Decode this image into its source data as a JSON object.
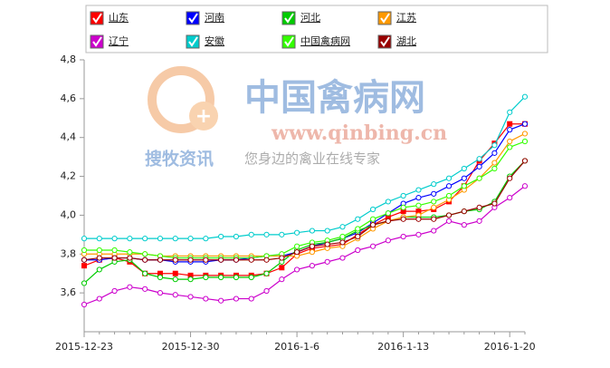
{
  "chart_data": {
    "type": "line",
    "categories": [
      "2015-12-23",
      null,
      null,
      null,
      null,
      null,
      null,
      "2015-12-30",
      null,
      null,
      null,
      null,
      null,
      null,
      "2016-1-6",
      null,
      null,
      null,
      null,
      null,
      null,
      "2016-1-13",
      null,
      null,
      null,
      null,
      null,
      null,
      "2016-1-20",
      null
    ],
    "ylim": [
      3.4,
      4.8
    ],
    "yticks": [
      {
        "value": 3.6,
        "label": "3,6"
      },
      {
        "value": 3.8,
        "label": "3,8"
      },
      {
        "value": 4.0,
        "label": "4,0"
      },
      {
        "value": 4.2,
        "label": "4,2"
      },
      {
        "value": 4.4,
        "label": "4,4"
      },
      {
        "value": 4.6,
        "label": "4,6"
      },
      {
        "value": 4.8,
        "label": "4,8"
      }
    ],
    "grid": false,
    "annotations": [
      "中国禽病网",
      "www.qinbing.cn",
      "搜牧资讯",
      "您身边的禽业在线专家"
    ],
    "series": [
      {
        "name": "山东",
        "color": "#ff0000",
        "marker": "square",
        "values": [
          3.74,
          3.77,
          3.78,
          3.76,
          3.7,
          3.7,
          3.7,
          3.69,
          3.69,
          3.69,
          3.69,
          3.69,
          3.7,
          3.73,
          3.8,
          3.83,
          3.84,
          3.85,
          3.9,
          3.95,
          3.99,
          4.02,
          4.02,
          4.03,
          4.07,
          4.15,
          4.28,
          4.37,
          4.47,
          4.47
        ]
      },
      {
        "name": "河南",
        "color": "#0000ff",
        "marker": "circle",
        "values": [
          3.77,
          3.77,
          3.78,
          3.78,
          3.77,
          3.77,
          3.76,
          3.76,
          3.76,
          3.77,
          3.77,
          3.78,
          3.79,
          3.79,
          3.81,
          3.84,
          3.86,
          3.88,
          3.91,
          3.96,
          4.01,
          4.06,
          4.09,
          4.11,
          4.15,
          4.19,
          4.25,
          4.32,
          4.44,
          4.47
        ]
      },
      {
        "name": "河北",
        "color": "#00cc00",
        "marker": "circle",
        "values": [
          3.65,
          3.72,
          3.76,
          3.77,
          3.7,
          3.68,
          3.67,
          3.67,
          3.68,
          3.68,
          3.68,
          3.68,
          3.7,
          3.76,
          3.82,
          3.85,
          3.86,
          3.88,
          3.92,
          3.95,
          3.97,
          3.99,
          3.99,
          3.99,
          4.0,
          4.02,
          4.03,
          4.07,
          4.2,
          4.28
        ]
      },
      {
        "name": "江苏",
        "color": "#ff9900",
        "marker": "circle",
        "values": [
          3.8,
          3.8,
          3.8,
          3.8,
          3.8,
          3.79,
          3.79,
          3.79,
          3.79,
          3.79,
          3.79,
          3.79,
          3.79,
          3.79,
          3.79,
          3.81,
          3.83,
          3.84,
          3.88,
          3.93,
          3.97,
          3.99,
          4.0,
          4.04,
          4.08,
          4.13,
          4.19,
          4.27,
          4.38,
          4.42
        ]
      },
      {
        "name": "辽宁",
        "color": "#cc00cc",
        "marker": "circle",
        "values": [
          3.54,
          3.57,
          3.61,
          3.63,
          3.62,
          3.6,
          3.59,
          3.58,
          3.57,
          3.56,
          3.57,
          3.57,
          3.61,
          3.67,
          3.72,
          3.74,
          3.76,
          3.78,
          3.82,
          3.84,
          3.87,
          3.89,
          3.9,
          3.92,
          3.97,
          3.95,
          3.97,
          4.04,
          4.09,
          4.15
        ]
      },
      {
        "name": "安徽",
        "color": "#00cccc",
        "marker": "circle",
        "values": [
          3.88,
          3.88,
          3.88,
          3.88,
          3.88,
          3.88,
          3.88,
          3.88,
          3.88,
          3.89,
          3.89,
          3.9,
          3.9,
          3.9,
          3.91,
          3.92,
          3.92,
          3.94,
          3.98,
          4.03,
          4.07,
          4.1,
          4.13,
          4.16,
          4.19,
          4.24,
          4.29,
          4.36,
          4.53,
          4.61
        ]
      },
      {
        "name": "中国禽病网",
        "color": "#33ff00",
        "marker": "circle",
        "values": [
          3.82,
          3.82,
          3.82,
          3.81,
          3.8,
          3.79,
          3.78,
          3.78,
          3.78,
          3.78,
          3.78,
          3.78,
          3.79,
          3.8,
          3.84,
          3.86,
          3.87,
          3.89,
          3.93,
          3.98,
          4.01,
          4.04,
          4.05,
          4.07,
          4.1,
          4.15,
          4.19,
          4.24,
          4.35,
          4.38
        ]
      },
      {
        "name": "湖北",
        "color": "#990000",
        "marker": "circle",
        "values": [
          3.77,
          3.78,
          3.78,
          3.78,
          3.77,
          3.77,
          3.77,
          3.77,
          3.77,
          3.77,
          3.77,
          3.77,
          3.77,
          3.78,
          3.81,
          3.84,
          3.85,
          3.86,
          3.89,
          3.95,
          3.97,
          3.98,
          3.98,
          3.98,
          4.0,
          4.02,
          4.04,
          4.06,
          4.19,
          4.28
        ]
      }
    ]
  }
}
